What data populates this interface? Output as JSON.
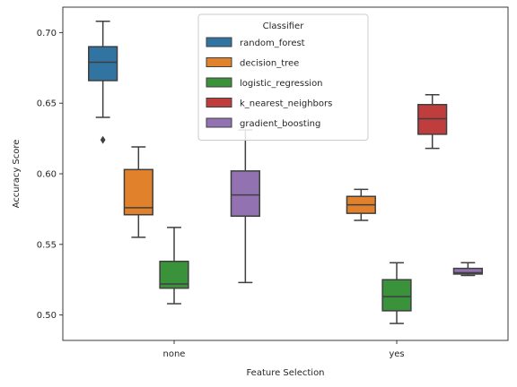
{
  "chart_data": {
    "type": "box",
    "xlabel": "Feature Selection",
    "ylabel": "Accuracy Score",
    "categories": [
      "none",
      "yes"
    ],
    "ylim": [
      0.482,
      0.718
    ],
    "yticks": [
      0.5,
      0.55,
      0.6,
      0.65,
      0.7
    ],
    "ytick_labels": [
      "0.50",
      "0.55",
      "0.60",
      "0.65",
      "0.70"
    ],
    "legend": {
      "title": "Classifier",
      "placement": "top-center"
    },
    "series": [
      {
        "name": "random_forest",
        "color": "#3274a1",
        "boxes": [
          {
            "category": "none",
            "whislo": 0.64,
            "q1": 0.666,
            "med": 0.679,
            "q3": 0.69,
            "whishi": 0.708,
            "fliers": [
              0.624
            ]
          },
          null
        ]
      },
      {
        "name": "decision_tree",
        "color": "#e1812c",
        "boxes": [
          {
            "category": "none",
            "whislo": 0.555,
            "q1": 0.571,
            "med": 0.576,
            "q3": 0.603,
            "whishi": 0.619,
            "fliers": []
          },
          {
            "category": "yes",
            "whislo": 0.567,
            "q1": 0.572,
            "med": 0.578,
            "q3": 0.584,
            "whishi": 0.589,
            "fliers": []
          }
        ]
      },
      {
        "name": "logistic_regression",
        "color": "#3a923a",
        "boxes": [
          {
            "category": "none",
            "whislo": 0.508,
            "q1": 0.519,
            "med": 0.522,
            "q3": 0.538,
            "whishi": 0.562,
            "fliers": []
          },
          {
            "category": "yes",
            "whislo": 0.494,
            "q1": 0.503,
            "med": 0.513,
            "q3": 0.525,
            "whishi": 0.537,
            "fliers": []
          }
        ]
      },
      {
        "name": "k_nearest_neighbors",
        "color": "#c03d3e",
        "boxes": [
          null,
          {
            "category": "yes",
            "whislo": 0.618,
            "q1": 0.628,
            "med": 0.639,
            "q3": 0.649,
            "whishi": 0.656,
            "fliers": []
          }
        ]
      },
      {
        "name": "gradient_boosting",
        "color": "#9372b2",
        "boxes": [
          {
            "category": "none",
            "whislo": 0.523,
            "q1": 0.57,
            "med": 0.585,
            "q3": 0.602,
            "whishi": 0.631,
            "fliers": []
          },
          {
            "category": "yes",
            "whislo": 0.528,
            "q1": 0.529,
            "med": 0.53,
            "q3": 0.533,
            "whishi": 0.537,
            "fliers": []
          }
        ]
      }
    ]
  }
}
